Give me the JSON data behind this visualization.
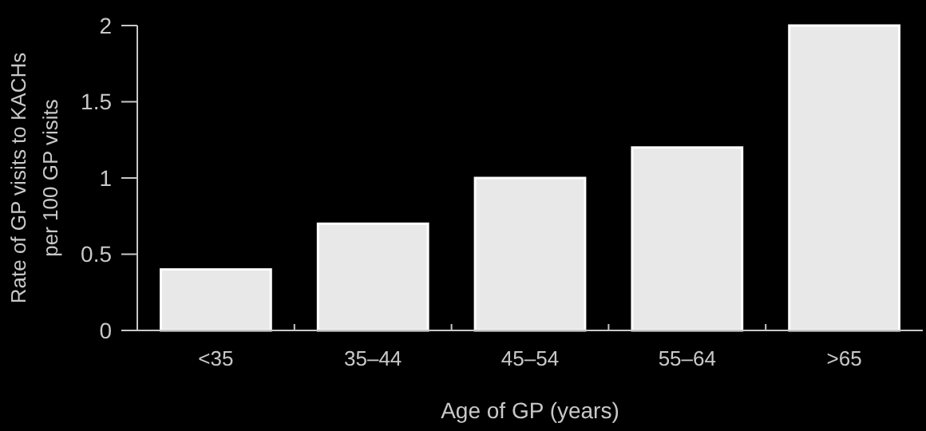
{
  "chart_data": {
    "type": "bar",
    "xlabel": "Age of GP (years)",
    "ylabel": "Rate of GP visits to KACHs\nper 100 GP visits",
    "categories": [
      "<35",
      "35–44",
      "45–54",
      "55–64",
      ">65"
    ],
    "values": [
      0.4,
      0.7,
      1.0,
      1.2,
      2.0
    ],
    "color": "#e8e8e8",
    "ylim": [
      0,
      2
    ],
    "yticks": [
      0,
      0.5,
      1,
      1.5,
      2
    ],
    "grid": false
  }
}
